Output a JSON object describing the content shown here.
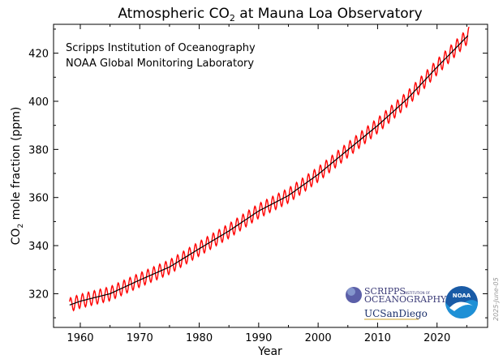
{
  "chart_data": {
    "type": "line",
    "title": "Atmospheric CO",
    "title_subscript": "2",
    "title_suffix": " at Mauna Loa Observatory",
    "xlabel": "Year",
    "ylabel_prefix": "CO",
    "ylabel_subscript": "2",
    "ylabel_suffix": " mole fraction (ppm)",
    "xlim": [
      1955.5,
      2028.5
    ],
    "ylim": [
      306,
      432
    ],
    "x_ticks": [
      1960,
      1970,
      1980,
      1990,
      2000,
      2010,
      2020
    ],
    "y_ticks": [
      320,
      340,
      360,
      380,
      400,
      420
    ],
    "grid": false,
    "annotations": [
      "Scripps Institution of Oceanography",
      "NOAA Global Monitoring Laboratory"
    ],
    "date_stamp": "2025-June-05",
    "series": [
      {
        "kind": "monthly",
        "color": "#ff0000",
        "x_start": 1958.2,
        "x_end": 2025.4,
        "seasonal_amplitude": 3.2,
        "seasonal_phase_peak": 0.37
      },
      {
        "kind": "trend",
        "color": "#000000",
        "x": [
          1958.2,
          1960,
          1965,
          1970,
          1975,
          1980,
          1985,
          1990,
          1995,
          2000,
          2005,
          2010,
          2015,
          2020,
          2025.4
        ],
        "y": [
          315.3,
          316.9,
          320.0,
          325.7,
          331.1,
          338.7,
          346.1,
          354.4,
          360.8,
          369.6,
          379.8,
          389.9,
          401.0,
          414.2,
          427.8
        ]
      }
    ]
  },
  "logos": {
    "scripps_line1": "SCRIPPS",
    "scripps_line1_small": "INSTITUTION OF",
    "scripps_line2": "OCEANOGRAPHY",
    "ucsd": "UCSanDiego",
    "noaa": "NOAA"
  }
}
